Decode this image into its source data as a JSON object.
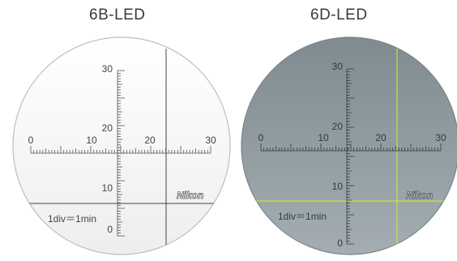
{
  "titles": {
    "left": "6B-LED",
    "right": "6D-LED"
  },
  "reticles": [
    {
      "id": "left",
      "scale_note": "1div＝1min",
      "logo": "Nikon",
      "h_labels": [
        "0",
        "10",
        "20",
        "30"
      ],
      "v_labels": [
        "30",
        "20",
        "10",
        "0"
      ],
      "colors": {
        "field": "#f5f5f5",
        "rim": "#bdbdbd",
        "scale": "#555555",
        "text": "#444444",
        "crosshair": "#444444"
      }
    },
    {
      "id": "right",
      "scale_note": "1div＝1min",
      "logo": "Nikon",
      "h_labels": [
        "0",
        "10",
        "20",
        "30"
      ],
      "v_labels": [
        "30",
        "20",
        "10",
        "0"
      ],
      "colors": {
        "field": "#8f9a9f",
        "rim": "#7a868b",
        "scale": "#2f3a3f",
        "text": "#2f3a3f",
        "crosshair": "#c9e33a"
      }
    }
  ]
}
